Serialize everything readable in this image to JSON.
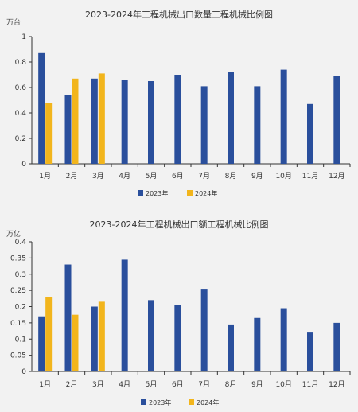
{
  "colors": {
    "series_2023": "#2a4f9c",
    "series_2024": "#f2b51c",
    "background": "#f2f2f2",
    "axis": "#333333"
  },
  "chart_data": [
    {
      "type": "bar",
      "title": "2023-2024年工程机械出口数量工程机械比例图",
      "unit": "万台",
      "categories": [
        "1月",
        "2月",
        "3月",
        "4月",
        "5月",
        "6月",
        "7月",
        "8月",
        "9月",
        "10月",
        "11月",
        "12月"
      ],
      "series": [
        {
          "name": "2023年",
          "color": "#2a4f9c",
          "values": [
            0.87,
            0.54,
            0.67,
            0.66,
            0.65,
            0.7,
            0.61,
            0.72,
            0.61,
            0.74,
            0.47,
            0.69
          ]
        },
        {
          "name": "2024年",
          "color": "#f2b51c",
          "values": [
            0.48,
            0.67,
            0.71,
            null,
            null,
            null,
            null,
            null,
            null,
            null,
            null,
            null
          ]
        }
      ],
      "ylim": [
        0,
        1
      ],
      "yticks": [
        "0",
        "0.2",
        "0.4",
        "0.6",
        "0.8",
        "1"
      ],
      "legend_position": "bottom"
    },
    {
      "type": "bar",
      "title": "2023-2024年工程机械出口额工程机械比例图",
      "unit": "万亿",
      "categories": [
        "1月",
        "2月",
        "3月",
        "4月",
        "5月",
        "6月",
        "7月",
        "8月",
        "9月",
        "10月",
        "11月",
        "12月"
      ],
      "series": [
        {
          "name": "2023年",
          "color": "#2a4f9c",
          "values": [
            0.17,
            0.33,
            0.2,
            0.345,
            0.22,
            0.205,
            0.255,
            0.145,
            0.165,
            0.195,
            0.12,
            0.15
          ]
        },
        {
          "name": "2024年",
          "color": "#f2b51c",
          "values": [
            0.23,
            0.175,
            0.215,
            null,
            null,
            null,
            null,
            null,
            null,
            null,
            null,
            null
          ]
        }
      ],
      "ylim": [
        0,
        0.4
      ],
      "yticks": [
        "0",
        "0.05",
        "0.1",
        "0.15",
        "0.2",
        "0.25",
        "0.3",
        "0.35",
        "0.4"
      ],
      "legend_position": "bottom"
    }
  ]
}
